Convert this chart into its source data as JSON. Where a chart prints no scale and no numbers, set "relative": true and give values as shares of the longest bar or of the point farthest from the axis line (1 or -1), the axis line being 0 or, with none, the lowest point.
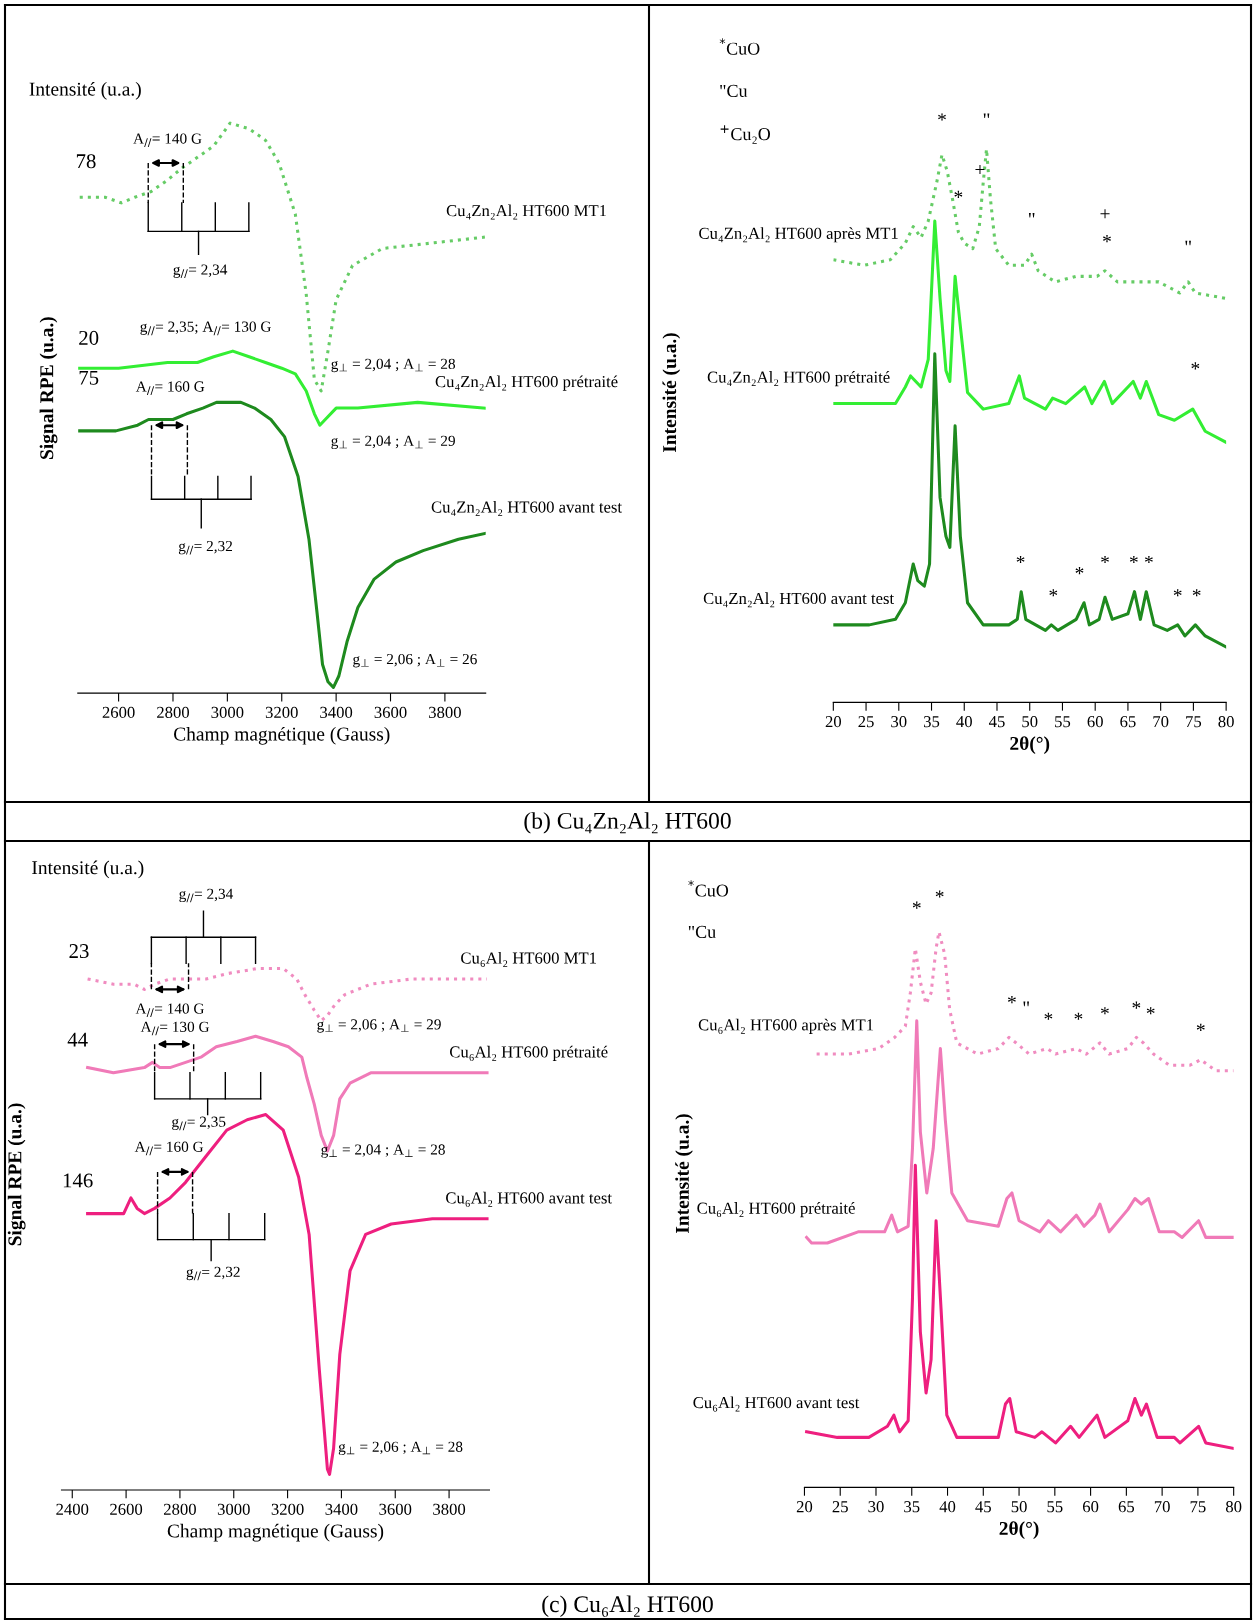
{
  "chart_data": [
    {
      "type": "line",
      "relative": true,
      "xlim": [
        2450,
        3950
      ],
      "xticks": [
        2600,
        2800,
        3000,
        3200,
        3400,
        3600,
        3800
      ],
      "xlabel": "Champ magnétique (Gauss)",
      "ylabel": "Signal RPE (u.a.)",
      "series": [
        {
          "name": "Cu₄Zn₂Al₂ HT600 MT1",
          "color": "#66cc66",
          "line_style": "dotted",
          "x": [
            2457,
            2550,
            2610,
            2660,
            2720,
            2780,
            2830,
            2890,
            2950,
            3010,
            3080,
            3140,
            3190,
            3250,
            3290,
            3320,
            3345,
            3370,
            3400,
            3460,
            3570,
            3760,
            3947
          ],
          "values": [
            0.87,
            0.87,
            0.86,
            0.87,
            0.88,
            0.9,
            0.92,
            0.94,
            0.96,
            1.0,
            0.99,
            0.97,
            0.93,
            0.84,
            0.7,
            0.55,
            0.53,
            0.6,
            0.69,
            0.75,
            0.78,
            0.79,
            0.8
          ]
        },
        {
          "name": "Cu₄Zn₂Al₂ HT600 prétraité",
          "color": "#33ee33",
          "line_style": "solid",
          "x": [
            2457,
            2600,
            2780,
            2890,
            2950,
            3020,
            3080,
            3140,
            3200,
            3250,
            3290,
            3320,
            3340,
            3360,
            3400,
            3480,
            3700,
            3947
          ],
          "values": [
            0.57,
            0.57,
            0.58,
            0.58,
            0.59,
            0.6,
            0.59,
            0.58,
            0.57,
            0.56,
            0.53,
            0.49,
            0.47,
            0.48,
            0.5,
            0.5,
            0.51,
            0.5
          ]
        },
        {
          "name": "Cu₄Zn₂Al₂ HT600 avant test",
          "color": "#1e8a1e",
          "line_style": "solid",
          "x": [
            2457,
            2590,
            2670,
            2710,
            2750,
            2800,
            2850,
            2910,
            2960,
            3010,
            3050,
            3100,
            3160,
            3210,
            3260,
            3300,
            3330,
            3350,
            3370,
            3390,
            3410,
            3440,
            3480,
            3540,
            3620,
            3720,
            3850,
            3947
          ],
          "values": [
            0.46,
            0.46,
            0.47,
            0.48,
            0.48,
            0.48,
            0.49,
            0.5,
            0.51,
            0.51,
            0.51,
            0.5,
            0.48,
            0.45,
            0.38,
            0.27,
            0.14,
            0.05,
            0.02,
            0.01,
            0.03,
            0.09,
            0.15,
            0.2,
            0.23,
            0.25,
            0.27,
            0.28
          ]
        }
      ],
      "annotations": [
        "Intensité (u.a.)",
        "(b) Cu₄Zn₂Al₂ HT600",
        "78",
        "20",
        "75",
        "A$_{//}$= 140 G",
        "g$_{//}$= 2,34",
        "g$_{//}$= 2,35; A$_{//}$= 130 G",
        "g$_{⊥}$ = 2,04 ; A$_{⊥}$ = 28",
        "A$_{//}$= 160 G",
        "g$_{⊥}$ = 2,04 ; A$_{⊥}$ = 29",
        "g$_{//}$= 2,32",
        "g$_{⊥}$ = 2,06 ; A$_{⊥}$ = 26"
      ]
    },
    {
      "type": "line",
      "relative": true,
      "xlim": [
        20,
        80
      ],
      "xticks": [
        20,
        25,
        30,
        35,
        40,
        45,
        50,
        55,
        60,
        65,
        70,
        75,
        80
      ],
      "xlabel": "2θ(°)",
      "ylabel": "Intensité (u.a.)",
      "series": [
        {
          "name": "Cu₄Zn₂Al₂ HT600 après MT1",
          "color": "#66cc66",
          "line_style": "dotted",
          "x": [
            20,
            24.7,
            28.7,
            31,
            32.2,
            33.4,
            34.5,
            35.8,
            36.6,
            37.4,
            38.2,
            39.1,
            40,
            41.3,
            42.3,
            42.9,
            43.4,
            44,
            44.8,
            46.8,
            49.2,
            50.3,
            51.3,
            53.9,
            57.1,
            60.3,
            61.5,
            63.4,
            66.6,
            69.7,
            72.9,
            74.2,
            75.3,
            80
          ],
          "values": [
            0.8,
            0.79,
            0.8,
            0.83,
            0.86,
            0.84,
            0.87,
            0.94,
            0.99,
            0.96,
            0.91,
            0.85,
            0.83,
            0.82,
            0.86,
            0.94,
            1.0,
            0.91,
            0.82,
            0.79,
            0.79,
            0.81,
            0.78,
            0.76,
            0.77,
            0.77,
            0.78,
            0.76,
            0.76,
            0.76,
            0.74,
            0.76,
            0.74,
            0.73
          ]
        },
        {
          "name": "Cu₄Zn₂Al₂ HT600 prétraité",
          "color": "#33ee33",
          "line_style": "solid",
          "x": [
            20,
            25.5,
            29.5,
            31,
            31.8,
            32.6,
            33.4,
            34.5,
            35.5,
            36.3,
            37.2,
            37.8,
            38.6,
            39.4,
            40.5,
            42.9,
            46.8,
            48.4,
            49.2,
            52.4,
            53.5,
            55.5,
            58.4,
            59.5,
            61.4,
            62.6,
            65.8,
            66.9,
            67.8,
            69.7,
            72.1,
            74.9,
            76.8,
            80
          ],
          "values": [
            0.54,
            0.54,
            0.54,
            0.57,
            0.59,
            0.58,
            0.57,
            0.62,
            0.87,
            0.73,
            0.6,
            0.58,
            0.77,
            0.68,
            0.56,
            0.53,
            0.54,
            0.59,
            0.55,
            0.53,
            0.55,
            0.54,
            0.57,
            0.54,
            0.58,
            0.54,
            0.58,
            0.55,
            0.58,
            0.52,
            0.51,
            0.53,
            0.49,
            0.47
          ]
        },
        {
          "name": "Cu₄Zn₂Al₂ HT600 avant test",
          "color": "#1e8a1e",
          "line_style": "solid",
          "x": [
            20,
            25.5,
            29.5,
            31,
            32.2,
            32.9,
            33.9,
            34.7,
            35.5,
            36.3,
            37.2,
            37.8,
            38.6,
            39.4,
            40.5,
            42.9,
            46.8,
            48.1,
            48.7,
            49.4,
            52.4,
            53.3,
            54.3,
            57.1,
            58.3,
            59.1,
            60.6,
            61.5,
            62.6,
            65,
            66,
            66.9,
            67.8,
            69,
            71,
            72.6,
            73.7,
            75.3,
            76.8,
            80
          ],
          "values": [
            0.14,
            0.14,
            0.15,
            0.18,
            0.25,
            0.22,
            0.21,
            0.25,
            0.63,
            0.37,
            0.3,
            0.28,
            0.5,
            0.3,
            0.18,
            0.14,
            0.14,
            0.15,
            0.2,
            0.15,
            0.13,
            0.14,
            0.13,
            0.15,
            0.18,
            0.14,
            0.15,
            0.19,
            0.15,
            0.16,
            0.2,
            0.15,
            0.2,
            0.14,
            0.13,
            0.14,
            0.12,
            0.14,
            0.12,
            0.1
          ]
        }
      ],
      "annotations": [
        "$^{*}$CuO",
        "\"Cu",
        "$^{+}$Cu₂O",
        "*",
        "\"",
        "*",
        "+",
        "\"",
        "+",
        "*",
        "\"",
        "*",
        "*",
        "*",
        "*",
        "*",
        "*",
        "*",
        "*",
        "*"
      ]
    },
    {
      "type": "line",
      "relative": true,
      "xlim": [
        2360,
        3950
      ],
      "xticks": [
        2400,
        2600,
        2800,
        3000,
        3200,
        3400,
        3600,
        3800
      ],
      "xlabel": "Champ magnétique (Gauss)",
      "ylabel": "Signal RPE (u.a.)",
      "series": [
        {
          "name": "Cu₆Al₂ HT600 MT1",
          "color": "#f08cc0",
          "line_style": "dotted",
          "x": [
            2457,
            2553,
            2629,
            2668,
            2706,
            2763,
            2840,
            2897,
            2974,
            3088,
            3184,
            3234,
            3264,
            3299,
            3325,
            3348,
            3375,
            3413,
            3509,
            3662,
            3941
          ],
          "values": [
            0.98,
            0.97,
            0.97,
            0.96,
            0.97,
            0.98,
            0.98,
            0.98,
            0.99,
            1.0,
            1.0,
            0.98,
            0.95,
            0.92,
            0.9,
            0.91,
            0.93,
            0.95,
            0.97,
            0.98,
            0.98
          ]
        },
        {
          "name": "Cu₆Al₂ HT600 prétraité",
          "color": "#f07ab8",
          "line_style": "solid",
          "x": [
            2457,
            2553,
            2668,
            2698,
            2725,
            2763,
            2821,
            2878,
            2935,
            3012,
            3081,
            3146,
            3203,
            3253,
            3272,
            3299,
            3325,
            3348,
            3371,
            3394,
            3432,
            3509,
            3662,
            3941
          ],
          "values": [
            0.81,
            0.8,
            0.81,
            0.82,
            0.81,
            0.81,
            0.82,
            0.83,
            0.85,
            0.86,
            0.87,
            0.86,
            0.85,
            0.83,
            0.79,
            0.74,
            0.68,
            0.65,
            0.68,
            0.75,
            0.78,
            0.8,
            0.8,
            0.8
          ]
        },
        {
          "name": "Cu₆Al₂ HT600 avant test",
          "color": "#ee1f7f",
          "line_style": "solid",
          "x": [
            2457,
            2553,
            2591,
            2618,
            2641,
            2668,
            2706,
            2763,
            2821,
            2897,
            2974,
            3050,
            3119,
            3184,
            3241,
            3280,
            3302,
            3318,
            3337,
            3348,
            3356,
            3371,
            3394,
            3432,
            3490,
            3585,
            3738,
            3941
          ],
          "values": [
            0.53,
            0.53,
            0.53,
            0.56,
            0.54,
            0.53,
            0.54,
            0.56,
            0.59,
            0.64,
            0.69,
            0.71,
            0.72,
            0.69,
            0.6,
            0.49,
            0.34,
            0.23,
            0.11,
            0.04,
            0.03,
            0.08,
            0.26,
            0.42,
            0.49,
            0.51,
            0.52,
            0.52
          ]
        }
      ],
      "annotations": [
        "Intensité (u.a.)",
        "(c) Cu₆Al₂ HT600",
        "23",
        "44",
        "146",
        "g$_{//}$= 2,34",
        "A$_{//}$= 140 G",
        "g$_{⊥}$ = 2,06 ; A$_{⊥}$ = 29",
        "A$_{//}$= 130 G",
        "g$_{//}$= 2,35",
        "g$_{⊥}$ = 2,04 ; A$_{⊥}$ = 28",
        "A$_{//}$= 160 G",
        "g$_{//}$= 2,32",
        "g$_{⊥}$ = 2,06 ; A$_{⊥}$ = 28"
      ]
    },
    {
      "type": "line",
      "relative": true,
      "xlim": [
        20,
        80
      ],
      "xticks": [
        20,
        25,
        30,
        35,
        40,
        45,
        50,
        55,
        60,
        65,
        70,
        75,
        80
      ],
      "xlabel": "2θ(°)",
      "ylabel": "Intensité (u.a.)",
      "series": [
        {
          "name": "Cu₆Al₂ HT600 après MT1",
          "color": "#f08cc0",
          "line_style": "dotted",
          "x": [
            21.7,
            26.1,
            30.4,
            32.6,
            34.1,
            34.8,
            35.5,
            36.2,
            37,
            37.7,
            38.4,
            38.8,
            39.6,
            40.3,
            41.3,
            44.2,
            47.1,
            48.6,
            49.6,
            51.4,
            53.9,
            55.1,
            58,
            59.4,
            61.3,
            62.6,
            65.2,
            66.4,
            67.4,
            68.8,
            71,
            73.9,
            75.4,
            77.5,
            80
          ],
          "values": [
            0.78,
            0.78,
            0.79,
            0.81,
            0.83,
            0.89,
            0.97,
            0.91,
            0.87,
            0.89,
            0.97,
            1.0,
            0.96,
            0.86,
            0.8,
            0.78,
            0.79,
            0.81,
            0.8,
            0.78,
            0.79,
            0.78,
            0.79,
            0.78,
            0.8,
            0.78,
            0.79,
            0.81,
            0.8,
            0.78,
            0.76,
            0.76,
            0.77,
            0.75,
            0.75
          ]
        },
        {
          "name": "Cu₆Al₂ HT600 prétraité",
          "color": "#f07ab8",
          "line_style": "solid",
          "x": [
            20.3,
            21,
            23.2,
            27.5,
            31.2,
            32.2,
            33,
            34.5,
            35.1,
            35.7,
            36.2,
            37.1,
            38,
            39,
            39.7,
            40.6,
            42.8,
            47.1,
            48.3,
            49,
            50,
            52.9,
            54.1,
            55.8,
            58,
            59.1,
            60.6,
            61.3,
            62.6,
            65.2,
            66.2,
            67.1,
            68.1,
            69.6,
            71.7,
            72.8,
            75.1,
            76.1,
            80
          ],
          "values": [
            0.45,
            0.44,
            0.44,
            0.46,
            0.46,
            0.49,
            0.46,
            0.47,
            0.61,
            0.84,
            0.64,
            0.53,
            0.61,
            0.79,
            0.66,
            0.53,
            0.48,
            0.47,
            0.52,
            0.53,
            0.48,
            0.46,
            0.48,
            0.46,
            0.49,
            0.47,
            0.49,
            0.51,
            0.46,
            0.5,
            0.52,
            0.51,
            0.52,
            0.46,
            0.46,
            0.45,
            0.48,
            0.45,
            0.45
          ]
        },
        {
          "name": "Cu₆Al₂ HT600 avant test",
          "color": "#ee1f7f",
          "line_style": "solid",
          "x": [
            20.3,
            24.6,
            29,
            31.6,
            32.5,
            33.3,
            34.5,
            35.1,
            35.5,
            36.2,
            37,
            37.7,
            38.4,
            39.1,
            39.9,
            41.3,
            47.1,
            48.1,
            48.7,
            49.6,
            52.2,
            53.2,
            55.1,
            57.2,
            58.4,
            60.9,
            62,
            65.2,
            66.2,
            67.1,
            67.8,
            69.3,
            71.7,
            72.5,
            75.1,
            76.1,
            80
          ],
          "values": [
            0.1,
            0.09,
            0.09,
            0.11,
            0.13,
            0.1,
            0.12,
            0.34,
            0.58,
            0.28,
            0.17,
            0.23,
            0.48,
            0.32,
            0.13,
            0.09,
            0.09,
            0.15,
            0.16,
            0.1,
            0.09,
            0.1,
            0.08,
            0.11,
            0.09,
            0.13,
            0.09,
            0.12,
            0.16,
            0.13,
            0.15,
            0.09,
            0.09,
            0.08,
            0.11,
            0.08,
            0.07
          ]
        }
      ],
      "annotations": [
        "$^{*}$CuO",
        "\"Cu",
        "*",
        "*",
        "*",
        "\"",
        "*",
        "*",
        "*",
        "*",
        "*",
        "*"
      ]
    }
  ]
}
